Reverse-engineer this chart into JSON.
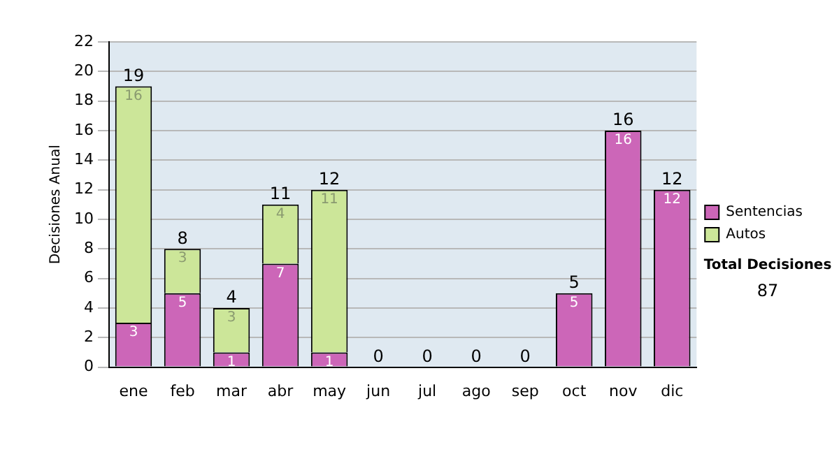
{
  "chart_data": {
    "type": "bar",
    "stacked": true,
    "ylabel": "Decisiones Anual",
    "categories": [
      "ene",
      "feb",
      "mar",
      "abr",
      "may",
      "jun",
      "jul",
      "ago",
      "sep",
      "oct",
      "nov",
      "dic"
    ],
    "series": [
      {
        "name": "Sentencias",
        "color": "#cc66b8",
        "values": [
          3,
          5,
          1,
          7,
          1,
          0,
          0,
          0,
          0,
          5,
          16,
          12
        ],
        "value_labels": [
          "3",
          "5",
          "1",
          "7",
          "1",
          null,
          null,
          null,
          null,
          "5",
          "16",
          "12"
        ]
      },
      {
        "name": "Autos",
        "color": "#cce699",
        "values": [
          16,
          3,
          3,
          4,
          11,
          0,
          0,
          0,
          0,
          0,
          0,
          0
        ],
        "value_labels": [
          "16",
          "3",
          "3",
          "4",
          "11",
          null,
          null,
          null,
          null,
          null,
          null,
          null
        ]
      }
    ],
    "totals": [
      "19",
      "8",
      "4",
      "11",
      "12",
      "0",
      "0",
      "0",
      "0",
      "5",
      "16",
      "12"
    ],
    "ylim": [
      0,
      22
    ],
    "yticks": [
      0,
      2,
      4,
      6,
      8,
      10,
      12,
      14,
      16,
      18,
      20,
      22
    ],
    "grid": "y",
    "legend": "right",
    "annotations": [
      "Total Decisiones",
      "87"
    ]
  }
}
